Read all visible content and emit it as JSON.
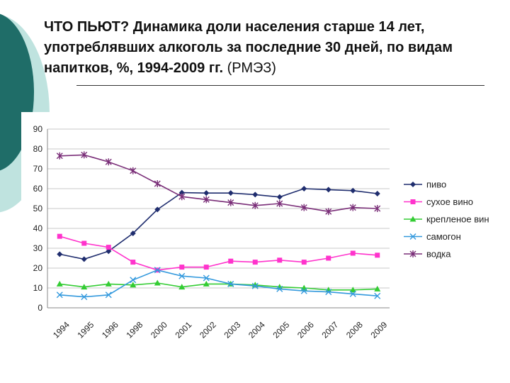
{
  "slide": {
    "title_main": "ЧТО ПЬЮТ? Динамика доли населения старше 14 лет, употреблявших алкоголь за последние 30 дней, по видам напитков, %, 1994-2009 гг.",
    "title_source": "(РМЭЗ)"
  },
  "chart_data": {
    "type": "line",
    "title": "ЧТО ПЬЮТ? Динамика доли населения старше 14 лет, употреблявших алкоголь за последние 30 дней, по видам напитков, %, 1994-2009 гг. (РМЭЗ)",
    "xlabel": "",
    "ylabel": "",
    "ylim": [
      0,
      90
    ],
    "yticks": [
      0,
      10,
      20,
      30,
      40,
      50,
      60,
      70,
      80,
      90
    ],
    "grid": true,
    "legend": "right",
    "categories": [
      "1994",
      "1995",
      "1996",
      "1998",
      "2000",
      "2001",
      "2002",
      "2003",
      "2004",
      "2005",
      "2006",
      "2007",
      "2008",
      "2009"
    ],
    "series": [
      {
        "name": "пиво",
        "color": "#1f2d6e",
        "marker": "diamond",
        "values": [
          27,
          24.5,
          28.5,
          37.5,
          49.5,
          58,
          57.8,
          57.8,
          57,
          55.8,
          60,
          59.5,
          59,
          57.5
        ]
      },
      {
        "name": "сухое вино",
        "color": "#ff33cc",
        "marker": "square",
        "values": [
          36,
          32.5,
          30.5,
          23,
          19,
          20.5,
          20.5,
          23.5,
          23,
          24,
          23,
          25,
          27.5,
          26.5
        ]
      },
      {
        "name": "крепленое вино",
        "color": "#33cc33",
        "marker": "triangle",
        "values": [
          12,
          10.5,
          12,
          11.5,
          12.5,
          10.5,
          12,
          12,
          11.5,
          10.5,
          10,
          9,
          9,
          9.5
        ]
      },
      {
        "name": "самогон",
        "color": "#3399dd",
        "marker": "x",
        "values": [
          6.5,
          5.5,
          6.5,
          14,
          19,
          16,
          15,
          12,
          11,
          9.5,
          8.5,
          8,
          7,
          6
        ]
      },
      {
        "name": "водка",
        "color": "#7a2e78",
        "marker": "star",
        "values": [
          76.5,
          77,
          73.5,
          69,
          62.5,
          56,
          54.5,
          53,
          51.5,
          52.5,
          50.5,
          48.5,
          50.5,
          50
        ]
      }
    ]
  }
}
